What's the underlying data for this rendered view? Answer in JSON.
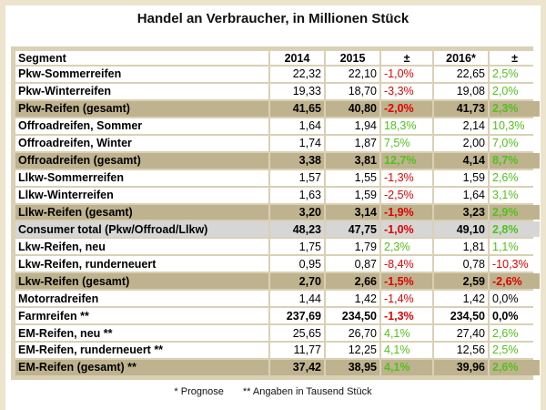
{
  "title": "Handel an Verbraucher, in Millionen Stück",
  "headers": [
    "Segment",
    "2014",
    "2015",
    "±",
    "2016*",
    "±"
  ],
  "rows": [
    {
      "segment": "Pkw-Sommerreifen",
      "y2014": "22,32",
      "y2015": "22,10",
      "chg1": "-1,0%",
      "chg1_color": "#e10000",
      "y2016": "22,65",
      "chg2": "2,5%",
      "chg2_color": "#51c21a",
      "style": "normal"
    },
    {
      "segment": "Pkw-Winterreifen",
      "y2014": "19,33",
      "y2015": "18,70",
      "chg1": "-3,3%",
      "chg1_color": "#e10000",
      "y2016": "19,08",
      "chg2": "2,0%",
      "chg2_color": "#51c21a",
      "style": "normal"
    },
    {
      "segment": "Pkw-Reifen (gesamt)",
      "y2014": "41,65",
      "y2015": "40,80",
      "chg1": "-2,0%",
      "chg1_color": "#e10000",
      "y2016": "41,73",
      "chg2": "2,3%",
      "chg2_color": "#51c21a",
      "style": "sub"
    },
    {
      "segment": "Offroadreifen, Sommer",
      "y2014": "1,64",
      "y2015": "1,94",
      "chg1": "18,3%",
      "chg1_color": "#51c21a",
      "y2016": "2,14",
      "chg2": "10,3%",
      "chg2_color": "#51c21a",
      "style": "normal"
    },
    {
      "segment": "Offroadreifen, Winter",
      "y2014": "1,74",
      "y2015": "1,87",
      "chg1": "7,5%",
      "chg1_color": "#51c21a",
      "y2016": "2,00",
      "chg2": "7,0%",
      "chg2_color": "#51c21a",
      "style": "normal"
    },
    {
      "segment": "Offroadreifen (gesamt)",
      "y2014": "3,38",
      "y2015": "3,81",
      "chg1": "12,7%",
      "chg1_color": "#51c21a",
      "y2016": "4,14",
      "chg2": "8,7%",
      "chg2_color": "#51c21a",
      "style": "sub"
    },
    {
      "segment": "Llkw-Sommerreifen",
      "y2014": "1,57",
      "y2015": "1,55",
      "chg1": "-1,3%",
      "chg1_color": "#e10000",
      "y2016": "1,59",
      "chg2": "2,6%",
      "chg2_color": "#51c21a",
      "style": "normal"
    },
    {
      "segment": "Llkw-Winterreifen",
      "y2014": "1,63",
      "y2015": "1,59",
      "chg1": "-2,5%",
      "chg1_color": "#e10000",
      "y2016": "1,64",
      "chg2": "3,1%",
      "chg2_color": "#51c21a",
      "style": "normal"
    },
    {
      "segment": "Llkw-Reifen (gesamt)",
      "y2014": "3,20",
      "y2015": "3,14",
      "chg1": "-1,9%",
      "chg1_color": "#e10000",
      "y2016": "3,23",
      "chg2": "2,9%",
      "chg2_color": "#51c21a",
      "style": "sub"
    },
    {
      "segment": "Consumer total (Pkw/Offroad/Llkw)",
      "y2014": "48,23",
      "y2015": "47,75",
      "chg1": "-1,0%",
      "chg1_color": "#e10000",
      "y2016": "49,10",
      "chg2": "2,8%",
      "chg2_color": "#51c21a",
      "style": "total"
    },
    {
      "segment": "Lkw-Reifen, neu",
      "y2014": "1,75",
      "y2015": "1,79",
      "chg1": "2,3%",
      "chg1_color": "#51c21a",
      "y2016": "1,81",
      "chg2": "1,1%",
      "chg2_color": "#51c21a",
      "style": "normal"
    },
    {
      "segment": "Lkw-Reifen, runderneuert",
      "y2014": "0,95",
      "y2015": "0,87",
      "chg1": "-8,4%",
      "chg1_color": "#e10000",
      "y2016": "0,78",
      "chg2": "-10,3%",
      "chg2_color": "#e10000",
      "style": "normal"
    },
    {
      "segment": "Lkw-Reifen (gesamt)",
      "y2014": "2,70",
      "y2015": "2,66",
      "chg1": "-1,5%",
      "chg1_color": "#e10000",
      "y2016": "2,59",
      "chg2": "-2,6%",
      "chg2_color": "#e10000",
      "style": "sub"
    },
    {
      "segment": "Motorradreifen",
      "y2014": "1,44",
      "y2015": "1,42",
      "chg1": "-1,4%",
      "chg1_color": "#e10000",
      "y2016": "1,42",
      "chg2": "0,0%",
      "chg2_color": "#000000",
      "style": "normal"
    },
    {
      "segment": "Farmreifen **",
      "y2014": "237,69",
      "y2015": "234,50",
      "chg1": "-1,3%",
      "chg1_color": "#e10000",
      "y2016": "234,50",
      "chg2": "0,0%",
      "chg2_color": "#000000",
      "style": "bold"
    },
    {
      "segment": "EM-Reifen, neu **",
      "y2014": "25,65",
      "y2015": "26,70",
      "chg1": "4,1%",
      "chg1_color": "#51c21a",
      "y2016": "27,40",
      "chg2": "2,6%",
      "chg2_color": "#51c21a",
      "style": "normal"
    },
    {
      "segment": "EM-Reifen, runderneuert **",
      "y2014": "11,77",
      "y2015": "12,25",
      "chg1": "4,1%",
      "chg1_color": "#51c21a",
      "y2016": "12,56",
      "chg2": "2,5%",
      "chg2_color": "#51c21a",
      "style": "normal"
    },
    {
      "segment": "EM-Reifen (gesamt) **",
      "y2014": "37,42",
      "y2015": "38,95",
      "chg1": "4,1%",
      "chg1_color": "#51c21a",
      "y2016": "39,96",
      "chg2": "2,6%",
      "chg2_color": "#51c21a",
      "style": "sub"
    }
  ],
  "footnotes": [
    "* Prognose",
    "** Angaben in Tausend Stück"
  ],
  "colors": {
    "frame": "#ece4cc",
    "subtotal_row": "#bfb38f",
    "total_row": "#d6d6d6",
    "negative": "#e10000",
    "positive": "#51c21a"
  }
}
